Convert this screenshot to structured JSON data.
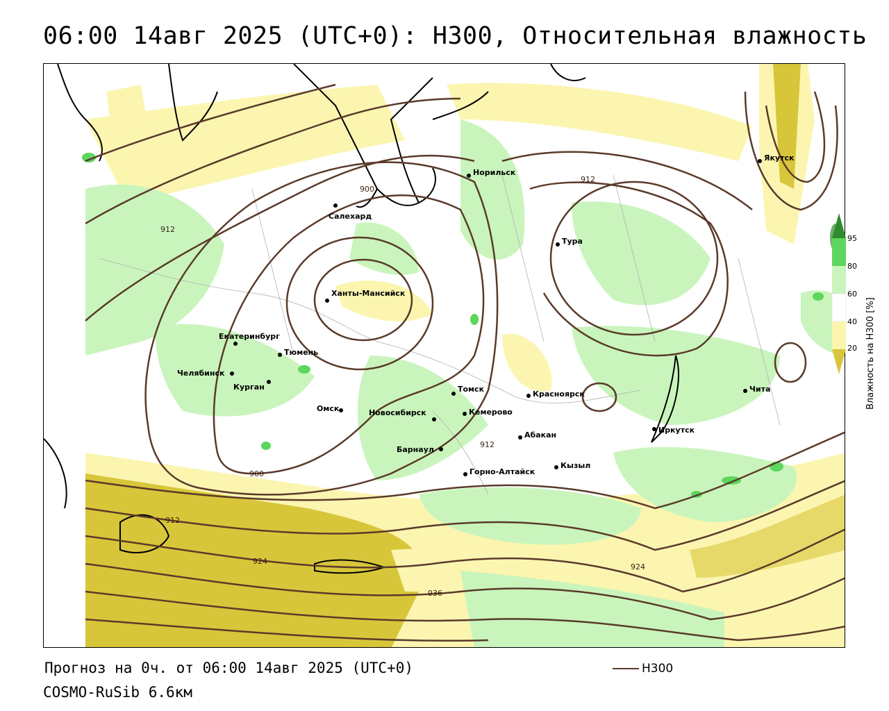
{
  "title": "06:00 14авг 2025 (UTC+0): H300, Относительная влажность",
  "map": {
    "cities": [
      {
        "name": "Норильск"
      },
      {
        "name": "Якутск"
      },
      {
        "name": "Салехард"
      },
      {
        "name": "Тура"
      },
      {
        "name": "Ханты-Мансийск"
      },
      {
        "name": "Екатеринбург"
      },
      {
        "name": "Тюмень"
      },
      {
        "name": "Челябинск"
      },
      {
        "name": "Курган"
      },
      {
        "name": "Омск"
      },
      {
        "name": "Новосибирск"
      },
      {
        "name": "Томск"
      },
      {
        "name": "Кемерово"
      },
      {
        "name": "Красноярск"
      },
      {
        "name": "Абакан"
      },
      {
        "name": "Барнаул"
      },
      {
        "name": "Горно-Алтайск"
      },
      {
        "name": "Кызыл"
      },
      {
        "name": "Иркутск"
      },
      {
        "name": "Чита"
      }
    ],
    "contour_labels": [
      "900",
      "912",
      "912",
      "900",
      "912",
      "912",
      "924",
      "924",
      "936"
    ],
    "colors": {
      "contour": "#5a3a2a",
      "humid_60_80": "#c9f5bd",
      "humid_80_95": "#5cd65c",
      "humid_95": "#2e8b2e",
      "dry_20_40": "#fbf5b0",
      "dry_0_20": "#d8c63a",
      "coast": "#000000"
    }
  },
  "legend": {
    "title": "Влажность на H300 [%]",
    "ticks": [
      "95",
      "80",
      "60",
      "40",
      "20"
    ]
  },
  "footer": {
    "forecast": "Прогноз на 0ч. от 06:00 14авг 2025 (UTC+0)",
    "model": "COSMO-RuSib 6.6км",
    "series_label": "H300"
  }
}
